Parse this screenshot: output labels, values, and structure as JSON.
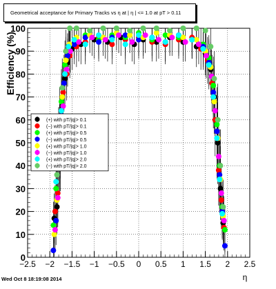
{
  "chart_data": {
    "type": "scatter",
    "title": "Geometrical acceptance for Primary Tracks vs   η at |  η | <= 1.0 at pT > 0.11",
    "xlabel": "η",
    "ylabel": "Efficiency (%)",
    "xlim": [
      -2.5,
      2.5
    ],
    "ylim": [
      0,
      100
    ],
    "x_ticks": [
      "−2.5",
      "−2",
      "−1.5",
      "−1",
      "−0.5",
      "0",
      "0.5",
      "1",
      "1.5",
      "2",
      "2.5"
    ],
    "y_ticks": [
      "0",
      "10",
      "20",
      "30",
      "40",
      "50",
      "60",
      "70",
      "80",
      "90",
      "100"
    ],
    "grid": true,
    "legend_position": "left-middle",
    "series": [
      {
        "name": "(+) with pT/|q|> 0.1",
        "color": "#000000",
        "values": [
          {
            "eta": -1.9,
            "eff": 17
          },
          {
            "eta": -1.84,
            "eff": 22
          },
          {
            "eta": -1.78,
            "eff": 45
          },
          {
            "eta": -1.72,
            "eff": 66
          },
          {
            "eta": -1.66,
            "eff": 78
          },
          {
            "eta": -1.6,
            "eff": 85
          },
          {
            "eta": -1.5,
            "eff": 91
          },
          {
            "eta": -1.3,
            "eff": 93
          },
          {
            "eta": -1.0,
            "eff": 95
          },
          {
            "eta": -0.7,
            "eff": 94
          },
          {
            "eta": -0.4,
            "eff": 96
          },
          {
            "eta": -0.1,
            "eff": 93
          },
          {
            "eta": 0.1,
            "eff": 95
          },
          {
            "eta": 0.4,
            "eff": 94
          },
          {
            "eta": 0.7,
            "eff": 96
          },
          {
            "eta": 1.0,
            "eff": 94
          },
          {
            "eta": 1.3,
            "eff": 92
          },
          {
            "eta": 1.5,
            "eff": 89
          },
          {
            "eta": 1.62,
            "eff": 82
          },
          {
            "eta": 1.7,
            "eff": 70
          },
          {
            "eta": 1.78,
            "eff": 50
          },
          {
            "eta": 1.84,
            "eff": 30
          },
          {
            "eta": 1.9,
            "eff": 15
          }
        ]
      },
      {
        "name": "(−) with pT/|q|> 0.1",
        "color": "#ff0000",
        "values": [
          {
            "eta": -1.88,
            "eff": 20
          },
          {
            "eta": -1.82,
            "eff": 28
          },
          {
            "eta": -1.76,
            "eff": 52
          },
          {
            "eta": -1.7,
            "eff": 72
          },
          {
            "eta": -1.62,
            "eff": 80
          },
          {
            "eta": -1.55,
            "eff": 88
          },
          {
            "eta": -1.4,
            "eff": 92
          },
          {
            "eta": -1.2,
            "eff": 94
          },
          {
            "eta": -0.9,
            "eff": 96
          },
          {
            "eta": -0.6,
            "eff": 93
          },
          {
            "eta": -0.3,
            "eff": 95
          },
          {
            "eta": 0.0,
            "eff": 96
          },
          {
            "eta": 0.3,
            "eff": 94
          },
          {
            "eta": 0.6,
            "eff": 93
          },
          {
            "eta": 0.9,
            "eff": 95
          },
          {
            "eta": 1.2,
            "eff": 96
          },
          {
            "eta": 1.4,
            "eff": 91
          },
          {
            "eta": 1.55,
            "eff": 86
          },
          {
            "eta": 1.65,
            "eff": 76
          },
          {
            "eta": 1.72,
            "eff": 60
          },
          {
            "eta": 1.8,
            "eff": 38
          },
          {
            "eta": 1.86,
            "eff": 25
          },
          {
            "eta": 1.92,
            "eff": 13
          }
        ]
      },
      {
        "name": "(+) with pT/|q|> 0.5",
        "color": "#00ff00",
        "values": [
          {
            "eta": -1.92,
            "eff": 14
          },
          {
            "eta": -1.86,
            "eff": 30
          },
          {
            "eta": -1.8,
            "eff": 48
          },
          {
            "eta": -1.74,
            "eff": 68
          },
          {
            "eta": -1.66,
            "eff": 84
          },
          {
            "eta": -1.58,
            "eff": 92
          },
          {
            "eta": -1.45,
            "eff": 95
          },
          {
            "eta": -1.2,
            "eff": 97
          },
          {
            "eta": -0.9,
            "eff": 95
          },
          {
            "eta": -0.6,
            "eff": 97
          },
          {
            "eta": -0.3,
            "eff": 96
          },
          {
            "eta": 0.0,
            "eff": 98
          },
          {
            "eta": 0.3,
            "eff": 95
          },
          {
            "eta": 0.6,
            "eff": 97
          },
          {
            "eta": 0.9,
            "eff": 96
          },
          {
            "eta": 1.2,
            "eff": 95
          },
          {
            "eta": 1.45,
            "eff": 93
          },
          {
            "eta": 1.58,
            "eff": 87
          },
          {
            "eta": 1.68,
            "eff": 75
          },
          {
            "eta": 1.76,
            "eff": 58
          },
          {
            "eta": 1.82,
            "eff": 40
          },
          {
            "eta": 1.88,
            "eff": 22
          },
          {
            "eta": 1.94,
            "eff": 12
          }
        ]
      },
      {
        "name": "(−) with pT/|q|> 0.5",
        "color": "#0000ff",
        "values": [
          {
            "eta": -1.92,
            "eff": 3
          },
          {
            "eta": -1.86,
            "eff": 16
          },
          {
            "eta": -1.8,
            "eff": 42
          },
          {
            "eta": -1.74,
            "eff": 62
          },
          {
            "eta": -1.68,
            "eff": 76
          },
          {
            "eta": -1.6,
            "eff": 88
          },
          {
            "eta": -1.45,
            "eff": 93
          },
          {
            "eta": -1.2,
            "eff": 96
          },
          {
            "eta": -0.9,
            "eff": 94
          },
          {
            "eta": -0.6,
            "eff": 96
          },
          {
            "eta": -0.3,
            "eff": 97
          },
          {
            "eta": 0.0,
            "eff": 95
          },
          {
            "eta": 0.3,
            "eff": 96
          },
          {
            "eta": 0.6,
            "eff": 94
          },
          {
            "eta": 0.9,
            "eff": 97
          },
          {
            "eta": 1.2,
            "eff": 95
          },
          {
            "eta": 1.45,
            "eff": 92
          },
          {
            "eta": 1.58,
            "eff": 85
          },
          {
            "eta": 1.68,
            "eff": 72
          },
          {
            "eta": 1.76,
            "eff": 55
          },
          {
            "eta": 1.82,
            "eff": 36
          },
          {
            "eta": 1.88,
            "eff": 20
          },
          {
            "eta": 1.94,
            "eff": 5
          }
        ]
      },
      {
        "name": "(+) with pT/|q|> 1.0",
        "color": "#ffff00",
        "values": [
          {
            "eta": -1.9,
            "eff": 10
          },
          {
            "eta": -1.84,
            "eff": 25
          },
          {
            "eta": -1.78,
            "eff": 50
          },
          {
            "eta": -1.72,
            "eff": 70
          },
          {
            "eta": -1.64,
            "eff": 86
          },
          {
            "eta": -1.56,
            "eff": 93
          },
          {
            "eta": -1.4,
            "eff": 96
          },
          {
            "eta": -1.1,
            "eff": 97
          },
          {
            "eta": -0.8,
            "eff": 96
          },
          {
            "eta": -0.5,
            "eff": 98
          },
          {
            "eta": -0.2,
            "eff": 97
          },
          {
            "eta": 0.1,
            "eff": 96
          },
          {
            "eta": 0.4,
            "eff": 98
          },
          {
            "eta": 0.7,
            "eff": 97
          },
          {
            "eta": 1.0,
            "eff": 96
          },
          {
            "eta": 1.3,
            "eff": 95
          },
          {
            "eta": 1.5,
            "eff": 90
          },
          {
            "eta": 1.62,
            "eff": 83
          },
          {
            "eta": 1.7,
            "eff": 68
          },
          {
            "eta": 1.78,
            "eff": 52
          },
          {
            "eta": 1.84,
            "eff": 34
          },
          {
            "eta": 1.9,
            "eff": 18
          }
        ]
      },
      {
        "name": "(−) with pT/|q|> 1.0",
        "color": "#ff00ff",
        "values": [
          {
            "eta": -1.88,
            "eff": 12
          },
          {
            "eta": -1.82,
            "eff": 26
          },
          {
            "eta": -1.76,
            "eff": 46
          },
          {
            "eta": -1.7,
            "eff": 66
          },
          {
            "eta": -1.62,
            "eff": 82
          },
          {
            "eta": -1.54,
            "eff": 90
          },
          {
            "eta": -1.35,
            "eff": 94
          },
          {
            "eta": -1.05,
            "eff": 96
          },
          {
            "eta": -0.75,
            "eff": 95
          },
          {
            "eta": -0.45,
            "eff": 97
          },
          {
            "eta": -0.15,
            "eff": 94
          },
          {
            "eta": 0.15,
            "eff": 97
          },
          {
            "eta": 0.45,
            "eff": 95
          },
          {
            "eta": 0.75,
            "eff": 96
          },
          {
            "eta": 1.05,
            "eff": 94
          },
          {
            "eta": 1.35,
            "eff": 93
          },
          {
            "eta": 1.52,
            "eff": 88
          },
          {
            "eta": 1.64,
            "eff": 79
          },
          {
            "eta": 1.72,
            "eff": 64
          },
          {
            "eta": 1.8,
            "eff": 44
          },
          {
            "eta": 1.86,
            "eff": 28
          },
          {
            "eta": 1.92,
            "eff": 16
          }
        ]
      },
      {
        "name": "(+) with pT/|q|> 2.0",
        "color": "#00ffff",
        "values": [
          {
            "eta": -1.86,
            "eff": 33
          },
          {
            "eta": -1.8,
            "eff": 48
          },
          {
            "eta": -1.74,
            "eff": 64
          },
          {
            "eta": -1.66,
            "eff": 80
          },
          {
            "eta": -1.58,
            "eff": 92
          },
          {
            "eta": -1.45,
            "eff": 95
          },
          {
            "eta": -1.2,
            "eff": 93
          },
          {
            "eta": -0.9,
            "eff": 97
          },
          {
            "eta": -0.6,
            "eff": 95
          },
          {
            "eta": -0.3,
            "eff": 93
          },
          {
            "eta": 0.0,
            "eff": 97
          },
          {
            "eta": 0.3,
            "eff": 96
          },
          {
            "eta": 0.6,
            "eff": 94
          },
          {
            "eta": 0.9,
            "eff": 97
          },
          {
            "eta": 1.2,
            "eff": 95
          },
          {
            "eta": 1.45,
            "eff": 91
          },
          {
            "eta": 1.58,
            "eff": 84
          },
          {
            "eta": 1.68,
            "eff": 70
          },
          {
            "eta": 1.76,
            "eff": 52
          },
          {
            "eta": 1.82,
            "eff": 34
          },
          {
            "eta": 1.88,
            "eff": 19
          }
        ]
      },
      {
        "name": "(−) with pT/|q|> 2.0",
        "color": "#66cc66",
        "values": [
          {
            "eta": -1.84,
            "eff": 36
          },
          {
            "eta": -1.78,
            "eff": 58
          },
          {
            "eta": -1.72,
            "eff": 74
          },
          {
            "eta": -1.64,
            "eff": 90
          },
          {
            "eta": -1.55,
            "eff": 100
          },
          {
            "eta": -1.4,
            "eff": 100
          },
          {
            "eta": -1.1,
            "eff": 99
          },
          {
            "eta": -0.8,
            "eff": 100
          },
          {
            "eta": -0.5,
            "eff": 100
          },
          {
            "eta": -0.2,
            "eff": 99
          },
          {
            "eta": 0.1,
            "eff": 100
          },
          {
            "eta": 0.4,
            "eff": 100
          },
          {
            "eta": 0.7,
            "eff": 99
          },
          {
            "eta": 1.0,
            "eff": 100
          },
          {
            "eta": 1.3,
            "eff": 100
          },
          {
            "eta": 1.5,
            "eff": 99
          },
          {
            "eta": 1.62,
            "eff": 92
          },
          {
            "eta": 1.7,
            "eff": 78
          },
          {
            "eta": 1.78,
            "eff": 60
          },
          {
            "eta": 1.84,
            "eff": 40
          },
          {
            "eta": 1.9,
            "eff": 22
          }
        ]
      }
    ]
  },
  "timestamp": "Wed Oct  8 18:19:08 2014"
}
